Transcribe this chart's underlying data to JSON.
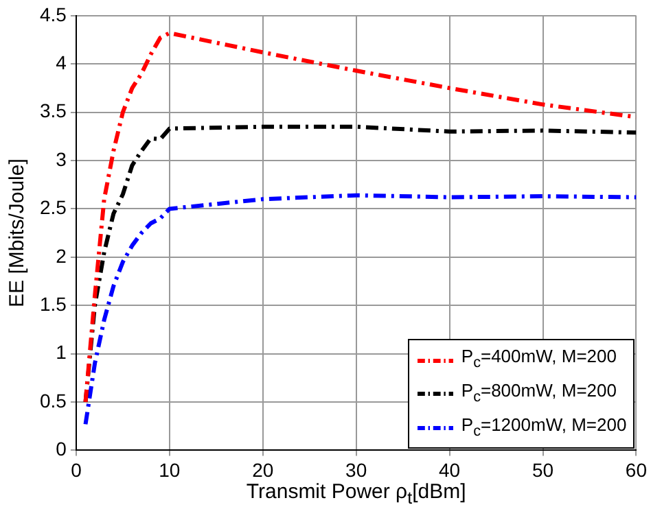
{
  "chart_data": {
    "type": "line",
    "xlabel": "Transmit Power ρ$_{t}$[dBm]",
    "ylabel": "EE [Mbits/Joule]",
    "x": [
      1,
      2,
      3,
      4,
      5,
      6,
      7,
      8,
      9,
      10,
      20,
      30,
      40,
      50,
      60
    ],
    "series": [
      {
        "name": "P$_{c}$=400mW, M=200",
        "color": "#ff0000",
        "values": [
          0.5,
          1.6,
          2.6,
          3.1,
          3.5,
          3.75,
          3.9,
          4.1,
          4.27,
          4.32,
          4.12,
          3.93,
          3.75,
          3.58,
          3.45
        ]
      },
      {
        "name": "P$_{c}$=800mW, M=200",
        "color": "#000000",
        "values": [
          0.5,
          1.5,
          2.05,
          2.45,
          2.65,
          2.95,
          3.1,
          3.23,
          3.22,
          3.33,
          3.35,
          3.35,
          3.3,
          3.31,
          3.29
        ]
      },
      {
        "name": "P$_{c}$=1200mW, M=200",
        "color": "#0000ff",
        "values": [
          0.27,
          0.9,
          1.35,
          1.7,
          1.95,
          2.12,
          2.25,
          2.35,
          2.4,
          2.5,
          2.6,
          2.64,
          2.62,
          2.63,
          2.62
        ]
      }
    ],
    "xlim": [
      0,
      60
    ],
    "xticks": [
      0,
      10,
      20,
      30,
      40,
      50,
      60
    ],
    "ylim": [
      0,
      4.5
    ],
    "yticks": [
      0,
      0.5,
      1,
      1.5,
      2,
      2.5,
      3,
      3.5,
      4,
      4.5
    ],
    "grid": true,
    "legend": "bottom right",
    "marker": "none",
    "line_style": "dashed"
  }
}
